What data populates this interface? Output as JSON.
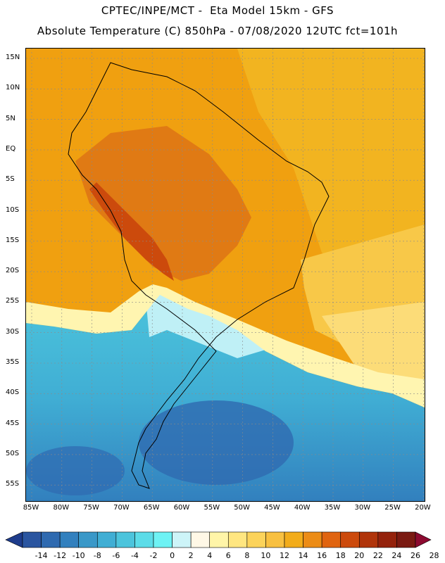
{
  "header": {
    "line1": "CPTEC/INPE/MCT -  Eta Model 15km - GFS",
    "line2": "Absolute Temperature (C) 850hPa - 07/08/2020 12UTC fct=101h"
  },
  "map": {
    "lat_labels": [
      "15N",
      "10N",
      "5N",
      "EQ",
      "5S",
      "10S",
      "15S",
      "20S",
      "25S",
      "30S",
      "35S",
      "40S",
      "45S",
      "50S",
      "55S"
    ],
    "lon_labels": [
      "85W",
      "80W",
      "75W",
      "70W",
      "65W",
      "60W",
      "55W",
      "50W",
      "45W",
      "40W",
      "35W",
      "30W",
      "25W",
      "20W"
    ],
    "lat_range": [
      -58,
      17
    ],
    "lon_range": [
      -86,
      -20
    ]
  },
  "colorbar": {
    "labels": [
      "-14",
      "-12",
      "-10",
      "-8",
      "-6",
      "-4",
      "-2",
      "0",
      "2",
      "4",
      "6",
      "8",
      "10",
      "12",
      "14",
      "16",
      "18",
      "20",
      "22",
      "24",
      "26",
      "28"
    ],
    "colors": [
      "#1e3c8c",
      "#2a55a0",
      "#2f6ab0",
      "#3280be",
      "#3a98c8",
      "#40aed4",
      "#4cc4dc",
      "#5cdce8",
      "#6ef2f4",
      "#cdf4f8",
      "#fff8e6",
      "#fff5a8",
      "#ffe680",
      "#fcd35a",
      "#f8c040",
      "#f2ac1a",
      "#ec8c16",
      "#e06410",
      "#cc4a0c",
      "#b0340a",
      "#94220c",
      "#7a1a12",
      "#8c0a30"
    ]
  }
}
